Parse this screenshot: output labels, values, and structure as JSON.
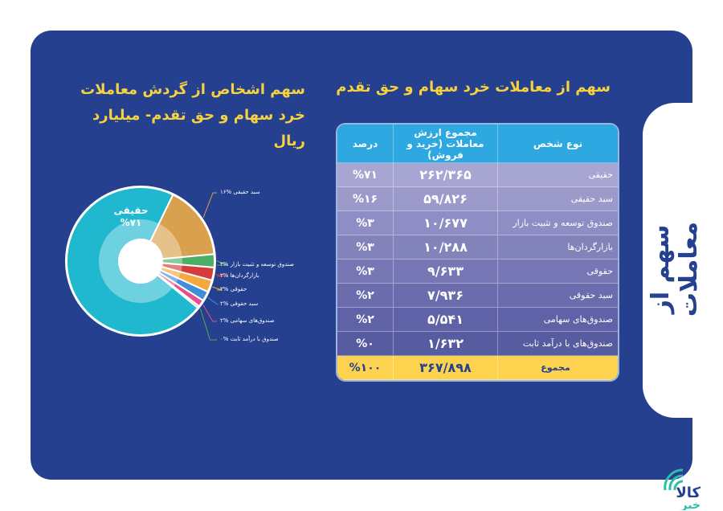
{
  "side_title": "سهم از معاملات",
  "table_title": "سهم از معاملات خرد سهام و حق تقدم",
  "chart_title": [
    "سهم اشخاص از گردش معاملات",
    "خرد سهام و حق تقدم- میلیارد ریال"
  ],
  "table": {
    "headers": [
      "نوع شخص",
      "مجموع ارزش معاملات (خرید و فروش)",
      "درصد"
    ],
    "rows": [
      {
        "name": "حقیقی",
        "value": "۲۶۲/۳۶۵",
        "pct": "%۷۱"
      },
      {
        "name": "سبد حقیقی",
        "value": "۵۹/۸۲۶",
        "pct": "%۱۶"
      },
      {
        "name": "صندوق توسعه و تثبیت بازار",
        "value": "۱۰/۶۷۷",
        "pct": "%۳"
      },
      {
        "name": "بازارگردان‌ها",
        "value": "۱۰/۲۸۸",
        "pct": "%۳"
      },
      {
        "name": "حقوقی",
        "value": "۹/۶۳۳",
        "pct": "%۳"
      },
      {
        "name": "سبد حقوقی",
        "value": "۷/۹۳۶",
        "pct": "%۲"
      },
      {
        "name": "صندوق‌های سهامی",
        "value": "۵/۵۴۱",
        "pct": "%۲"
      },
      {
        "name": "صندوق‌های با درآمد ثابت",
        "value": "۱/۶۳۲",
        "pct": "%۰"
      }
    ],
    "total": {
      "name": "مجموع",
      "value": "۳۶۷/۸۹۸",
      "pct": "%۱۰۰"
    }
  },
  "chart_data": {
    "type": "pie",
    "title": "سهم اشخاص از گردش معاملات خرد سهام و حق تقدم- میلیارد ریال",
    "center_label": {
      "name": "حقیقی",
      "pct": "%۷۱"
    },
    "slices": [
      {
        "label": "سبد حقیقی %۱۶",
        "value": 59826,
        "color": "#d9a14e"
      },
      {
        "label": "صندوق توسعه و تثبیت بازار %۳",
        "value": 10677,
        "color": "#4caf68"
      },
      {
        "label": "بازارگردان‌ها %۳",
        "value": 10288,
        "color": "#d63c3c"
      },
      {
        "label": "حقوقی %۳",
        "value": 9633,
        "color": "#f5a83c"
      },
      {
        "label": "سبد حقوقی %۲",
        "value": 7936,
        "color": "#3f8fd8"
      },
      {
        "label": "صندوق‌های سهامی %۲",
        "value": 5541,
        "color": "#e64f8c"
      },
      {
        "label": "صندوق با درآمد ثابت %۰",
        "value": 1632,
        "color": "#5aa846"
      },
      {
        "label": "حقیقی %۷۱",
        "value": 262365,
        "color": "#1fb8cf"
      }
    ]
  },
  "logo": "کالا خبر"
}
